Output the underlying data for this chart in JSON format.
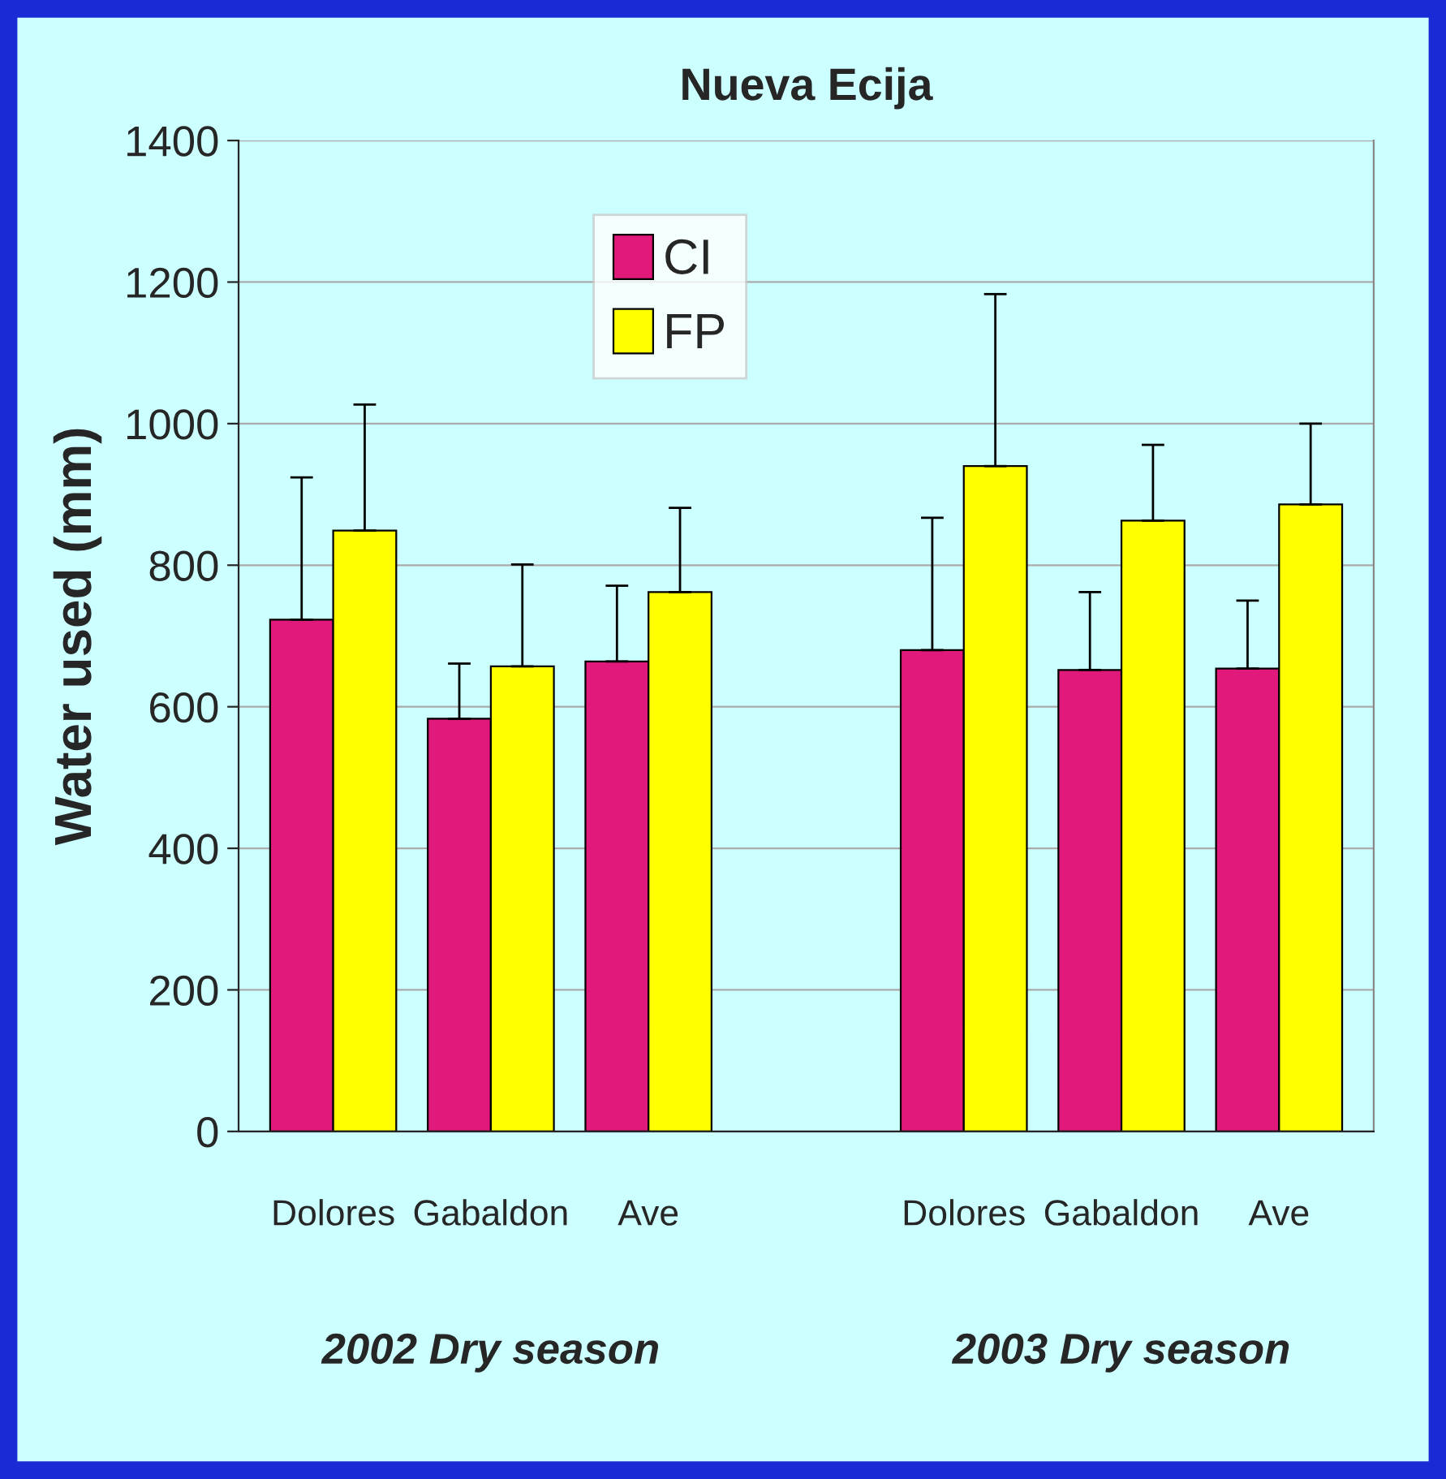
{
  "chart_data": {
    "type": "bar",
    "title": "Nueva Ecija",
    "ylabel": "Water used (mm)",
    "categories": [
      "Dolores",
      "Gabaldon",
      "Ave",
      null,
      "Dolores",
      "Gabaldon",
      "Ave"
    ],
    "series": [
      {
        "name": "CI",
        "color": "#e0197a",
        "values": [
          723,
          583,
          664,
          null,
          680,
          652,
          654
        ],
        "errors": [
          [
            723,
            924
          ],
          [
            583,
            661
          ],
          [
            664,
            771
          ],
          null,
          [
            680,
            867
          ],
          [
            652,
            762
          ],
          [
            654,
            750
          ]
        ]
      },
      {
        "name": "FP",
        "color": "#ffff00",
        "values": [
          849,
          657,
          762,
          null,
          940,
          863,
          886
        ],
        "errors": [
          [
            849,
            1027
          ],
          [
            657,
            801
          ],
          [
            762,
            881
          ],
          null,
          [
            940,
            1183
          ],
          [
            863,
            970
          ],
          [
            886,
            1000
          ]
        ]
      }
    ],
    "ylim": [
      0,
      1400
    ],
    "yticks": [
      0,
      200,
      400,
      600,
      800,
      1000,
      1200,
      1400
    ],
    "grid": "y",
    "legend": "top",
    "annotations": [
      "2002 Dry season",
      "2003 Dry season"
    ]
  }
}
